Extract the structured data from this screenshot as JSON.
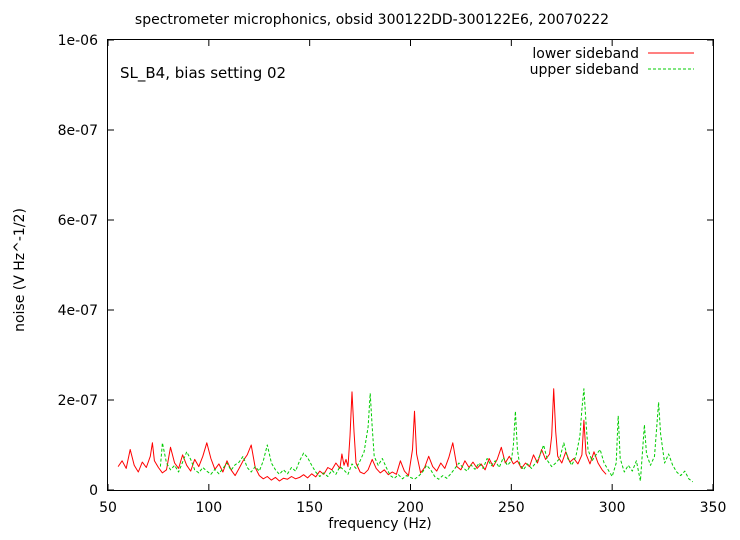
{
  "chart_data": {
    "type": "line",
    "title": "spectrometer microphonics, obsid 300122DD-300122E6, 20070222",
    "annotation": "SL_B4, bias setting 02",
    "xlabel": "frequency (Hz)",
    "ylabel": "noise (V Hz^-1/2)",
    "xlim": [
      50,
      350
    ],
    "ylim": [
      0,
      1e-06
    ],
    "x_ticks": [
      50,
      100,
      150,
      200,
      250,
      300,
      350
    ],
    "x_tick_labels": [
      "50",
      "100",
      "150",
      "200",
      "250",
      "300",
      "350"
    ],
    "y_ticks": [
      0,
      2e-07,
      4e-07,
      6e-07,
      8e-07,
      1e-06
    ],
    "y_tick_labels": [
      "0",
      "2e-07",
      "4e-07",
      "6e-07",
      "8e-07",
      "1e-06"
    ],
    "grid": false,
    "legend_position": "top-right",
    "series": [
      {
        "name": "lower sideband",
        "color": "#ff0000",
        "dash": "solid",
        "points": [
          [
            55,
            5.2e-08
          ],
          [
            57,
            6.5e-08
          ],
          [
            59,
            4.8e-08
          ],
          [
            61,
            9e-08
          ],
          [
            63,
            5.5e-08
          ],
          [
            65,
            4e-08
          ],
          [
            67,
            6.2e-08
          ],
          [
            69,
            5e-08
          ],
          [
            71,
            7.5e-08
          ],
          [
            72,
            1.05e-07
          ],
          [
            73,
            6.5e-08
          ],
          [
            75,
            5e-08
          ],
          [
            77,
            3.8e-08
          ],
          [
            79,
            4.5e-08
          ],
          [
            81,
            9.5e-08
          ],
          [
            83,
            6e-08
          ],
          [
            85,
            4.8e-08
          ],
          [
            87,
            7.8e-08
          ],
          [
            89,
            5.5e-08
          ],
          [
            91,
            4.2e-08
          ],
          [
            93,
            6.8e-08
          ],
          [
            95,
            5.2e-08
          ],
          [
            97,
            7.5e-08
          ],
          [
            99,
            1.05e-07
          ],
          [
            101,
            7e-08
          ],
          [
            103,
            4.6e-08
          ],
          [
            105,
            5.8e-08
          ],
          [
            107,
            4e-08
          ],
          [
            109,
            6.5e-08
          ],
          [
            111,
            4.5e-08
          ],
          [
            113,
            3.2e-08
          ],
          [
            115,
            4.8e-08
          ],
          [
            117,
            6.5e-08
          ],
          [
            119,
            7.8e-08
          ],
          [
            121,
            1e-07
          ],
          [
            123,
            5e-08
          ],
          [
            125,
            3.2e-08
          ],
          [
            127,
            2.5e-08
          ],
          [
            129,
            3e-08
          ],
          [
            131,
            2.2e-08
          ],
          [
            133,
            2.8e-08
          ],
          [
            135,
            2e-08
          ],
          [
            137,
            2.6e-08
          ],
          [
            139,
            2.4e-08
          ],
          [
            141,
            3e-08
          ],
          [
            143,
            2.5e-08
          ],
          [
            145,
            2.8e-08
          ],
          [
            147,
            3.4e-08
          ],
          [
            149,
            2.7e-08
          ],
          [
            151,
            3.6e-08
          ],
          [
            153,
            2.9e-08
          ],
          [
            155,
            4.2e-08
          ],
          [
            157,
            3.5e-08
          ],
          [
            159,
            5e-08
          ],
          [
            161,
            4.5e-08
          ],
          [
            163,
            6e-08
          ],
          [
            165,
            4.8e-08
          ],
          [
            166,
            8e-08
          ],
          [
            167,
            5.5e-08
          ],
          [
            168,
            6.8e-08
          ],
          [
            169,
            5.2e-08
          ],
          [
            170,
            1.2e-07
          ],
          [
            171,
            2.18e-07
          ],
          [
            172,
            1.3e-07
          ],
          [
            173,
            6e-08
          ],
          [
            175,
            4e-08
          ],
          [
            177,
            3.6e-08
          ],
          [
            179,
            4.5e-08
          ],
          [
            181,
            6.8e-08
          ],
          [
            183,
            4.8e-08
          ],
          [
            185,
            3.8e-08
          ],
          [
            187,
            4.5e-08
          ],
          [
            189,
            3.4e-08
          ],
          [
            191,
            4e-08
          ],
          [
            193,
            3.5e-08
          ],
          [
            195,
            6.5e-08
          ],
          [
            197,
            4.2e-08
          ],
          [
            199,
            3.2e-08
          ],
          [
            201,
            9e-08
          ],
          [
            202,
            1.75e-07
          ],
          [
            203,
            8e-08
          ],
          [
            205,
            3.8e-08
          ],
          [
            207,
            5e-08
          ],
          [
            209,
            7.5e-08
          ],
          [
            211,
            5.2e-08
          ],
          [
            213,
            4.2e-08
          ],
          [
            215,
            6e-08
          ],
          [
            217,
            4.8e-08
          ],
          [
            219,
            7.2e-08
          ],
          [
            221,
            1.05e-07
          ],
          [
            223,
            5.2e-08
          ],
          [
            225,
            4.5e-08
          ],
          [
            227,
            6.5e-08
          ],
          [
            229,
            5e-08
          ],
          [
            231,
            6.2e-08
          ],
          [
            233,
            4.8e-08
          ],
          [
            235,
            5.8e-08
          ],
          [
            237,
            4.5e-08
          ],
          [
            239,
            7e-08
          ],
          [
            241,
            5.2e-08
          ],
          [
            243,
            6.8e-08
          ],
          [
            245,
            9.5e-08
          ],
          [
            247,
            6e-08
          ],
          [
            249,
            7.5e-08
          ],
          [
            251,
            5.8e-08
          ],
          [
            253,
            6.5e-08
          ],
          [
            255,
            4.8e-08
          ],
          [
            257,
            6e-08
          ],
          [
            259,
            5.2e-08
          ],
          [
            261,
            7.8e-08
          ],
          [
            263,
            6e-08
          ],
          [
            265,
            9e-08
          ],
          [
            267,
            6.8e-08
          ],
          [
            269,
            8e-08
          ],
          [
            270,
            1.2e-07
          ],
          [
            271,
            2.25e-07
          ],
          [
            272,
            1.3e-07
          ],
          [
            273,
            7.5e-08
          ],
          [
            275,
            6e-08
          ],
          [
            277,
            8.5e-08
          ],
          [
            279,
            6.2e-08
          ],
          [
            281,
            7e-08
          ],
          [
            283,
            5.8e-08
          ],
          [
            285,
            7.8e-08
          ],
          [
            286,
            1.55e-07
          ],
          [
            287,
            8e-08
          ],
          [
            289,
            5.8e-08
          ],
          [
            291,
            8.5e-08
          ],
          [
            293,
            6e-08
          ],
          [
            295,
            4.5e-08
          ],
          [
            297,
            3.5e-08
          ]
        ]
      },
      {
        "name": "upper sideband",
        "color": "#00cc00",
        "dash": "dashed",
        "points": [
          [
            76,
            5.2e-08
          ],
          [
            77,
            1.05e-07
          ],
          [
            79,
            6e-08
          ],
          [
            81,
            4.5e-08
          ],
          [
            83,
            5.5e-08
          ],
          [
            85,
            4e-08
          ],
          [
            87,
            6.2e-08
          ],
          [
            89,
            8.5e-08
          ],
          [
            91,
            6.8e-08
          ],
          [
            93,
            4.5e-08
          ],
          [
            95,
            3.8e-08
          ],
          [
            97,
            5e-08
          ],
          [
            99,
            4.2e-08
          ],
          [
            101,
            3.5e-08
          ],
          [
            103,
            4.6e-08
          ],
          [
            105,
            3.6e-08
          ],
          [
            107,
            4.8e-08
          ],
          [
            109,
            6e-08
          ],
          [
            111,
            4.4e-08
          ],
          [
            113,
            5.6e-08
          ],
          [
            115,
            6.2e-08
          ],
          [
            117,
            7.5e-08
          ],
          [
            119,
            5e-08
          ],
          [
            121,
            4e-08
          ],
          [
            123,
            5.2e-08
          ],
          [
            125,
            4.2e-08
          ],
          [
            127,
            6.5e-08
          ],
          [
            129,
            1e-07
          ],
          [
            131,
            6e-08
          ],
          [
            133,
            4.5e-08
          ],
          [
            135,
            3.5e-08
          ],
          [
            137,
            4.5e-08
          ],
          [
            139,
            3.6e-08
          ],
          [
            141,
            5e-08
          ],
          [
            143,
            4.2e-08
          ],
          [
            145,
            6.5e-08
          ],
          [
            147,
            8.2e-08
          ],
          [
            149,
            7.2e-08
          ],
          [
            151,
            5.5e-08
          ],
          [
            153,
            4e-08
          ],
          [
            155,
            3e-08
          ],
          [
            157,
            3.8e-08
          ],
          [
            159,
            3e-08
          ],
          [
            161,
            4.4e-08
          ],
          [
            163,
            3.5e-08
          ],
          [
            165,
            5.2e-08
          ],
          [
            167,
            4.4e-08
          ],
          [
            169,
            3.5e-08
          ],
          [
            171,
            5.8e-08
          ],
          [
            173,
            4.8e-08
          ],
          [
            175,
            6.5e-08
          ],
          [
            177,
            8.5e-08
          ],
          [
            179,
            1.4e-07
          ],
          [
            180,
            2.15e-07
          ],
          [
            181,
            1.4e-07
          ],
          [
            182,
            7.5e-08
          ],
          [
            184,
            5.5e-08
          ],
          [
            186,
            7e-08
          ],
          [
            188,
            5e-08
          ],
          [
            190,
            3.2e-08
          ],
          [
            192,
            2.6e-08
          ],
          [
            194,
            3.4e-08
          ],
          [
            196,
            2.5e-08
          ],
          [
            198,
            3.2e-08
          ],
          [
            200,
            2.8e-08
          ],
          [
            202,
            2.4e-08
          ],
          [
            204,
            3.1e-08
          ],
          [
            206,
            4e-08
          ],
          [
            208,
            5.5e-08
          ],
          [
            210,
            4.5e-08
          ],
          [
            212,
            3e-08
          ],
          [
            214,
            2.4e-08
          ],
          [
            216,
            3.2e-08
          ],
          [
            218,
            2.6e-08
          ],
          [
            220,
            3.6e-08
          ],
          [
            222,
            4.8e-08
          ],
          [
            224,
            6e-08
          ],
          [
            226,
            5e-08
          ],
          [
            228,
            4.2e-08
          ],
          [
            230,
            5.6e-08
          ],
          [
            232,
            4.6e-08
          ],
          [
            234,
            6e-08
          ],
          [
            236,
            4.8e-08
          ],
          [
            238,
            7e-08
          ],
          [
            240,
            5.4e-08
          ],
          [
            242,
            6.5e-08
          ],
          [
            244,
            5e-08
          ],
          [
            246,
            7.2e-08
          ],
          [
            248,
            5.5e-08
          ],
          [
            250,
            6.4e-08
          ],
          [
            251,
            1e-07
          ],
          [
            252,
            1.75e-07
          ],
          [
            253,
            9e-08
          ],
          [
            254,
            6e-08
          ],
          [
            256,
            4.5e-08
          ],
          [
            258,
            5.8e-08
          ],
          [
            260,
            4.8e-08
          ],
          [
            262,
            6e-08
          ],
          [
            264,
            7.5e-08
          ],
          [
            266,
            1e-07
          ],
          [
            268,
            6.5e-08
          ],
          [
            270,
            5.2e-08
          ],
          [
            272,
            6e-08
          ],
          [
            274,
            7e-08
          ],
          [
            276,
            1.05e-07
          ],
          [
            278,
            7e-08
          ],
          [
            280,
            5.5e-08
          ],
          [
            282,
            7.5e-08
          ],
          [
            284,
            1.2e-07
          ],
          [
            285,
            1.8e-07
          ],
          [
            286,
            2.25e-07
          ],
          [
            287,
            1.5e-07
          ],
          [
            288,
            9e-08
          ],
          [
            290,
            6.5e-08
          ],
          [
            292,
            7.8e-08
          ],
          [
            294,
            9e-08
          ],
          [
            296,
            6e-08
          ],
          [
            298,
            4.5e-08
          ],
          [
            300,
            3e-08
          ],
          [
            302,
            6e-08
          ],
          [
            303,
            1.65e-07
          ],
          [
            304,
            7e-08
          ],
          [
            306,
            4e-08
          ],
          [
            308,
            5.5e-08
          ],
          [
            310,
            4.2e-08
          ],
          [
            312,
            6.5e-08
          ],
          [
            314,
            2e-08
          ],
          [
            316,
            1.45e-07
          ],
          [
            317,
            8e-08
          ],
          [
            319,
            5.5e-08
          ],
          [
            321,
            7.5e-08
          ],
          [
            323,
            1.95e-07
          ],
          [
            324,
            1.25e-07
          ],
          [
            326,
            6e-08
          ],
          [
            328,
            8e-08
          ],
          [
            330,
            5.5e-08
          ],
          [
            332,
            4e-08
          ],
          [
            334,
            3.2e-08
          ],
          [
            336,
            4.2e-08
          ],
          [
            338,
            2.5e-08
          ],
          [
            340,
            1.8e-08
          ]
        ]
      }
    ]
  }
}
